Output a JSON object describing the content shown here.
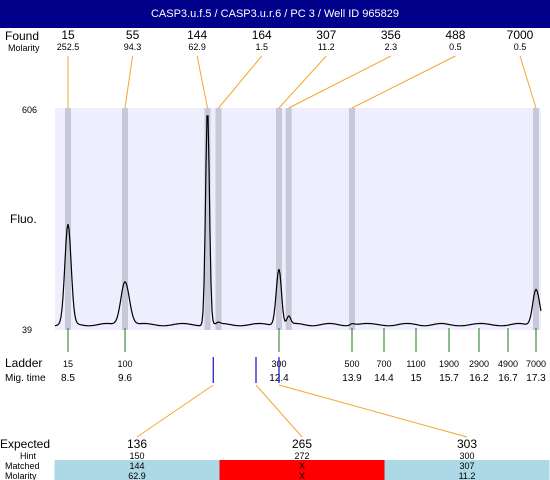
{
  "header": {
    "title": "CASP3.u.f.5 / CASP3.u.r.6 / PC 3 / Well ID 965829"
  },
  "chart_data": {
    "type": "line",
    "row_labels": {
      "found": "Found",
      "molarity": "Molarity",
      "fluo": "Fluo.",
      "ladder": "Ladder",
      "mig_time": "Mig. time",
      "expected": "Expected",
      "hint": "Hint",
      "matched": "Matched",
      "molarity2": "Molarity"
    },
    "y_range": [
      39,
      606
    ],
    "found": [
      {
        "size": "15",
        "molarity": "252.5",
        "time": 8.5
      },
      {
        "size": "55",
        "molarity": "94.3",
        "time": 9.6
      },
      {
        "size": "144",
        "molarity": "62.9",
        "time": 11.1
      },
      {
        "size": "164",
        "molarity": "1.5",
        "time": 11.3
      },
      {
        "size": "307",
        "molarity": "11.2",
        "time": 12.4
      },
      {
        "size": "356",
        "molarity": "2.3",
        "time": 12.6
      },
      {
        "size": "488",
        "molarity": "0.5",
        "time": 13.9
      },
      {
        "size": "7000",
        "molarity": "0.5",
        "time": 17.3
      }
    ],
    "ladder": [
      {
        "size": "15",
        "time": "8.5"
      },
      {
        "size": "100",
        "time": "9.6"
      },
      {
        "size": "300",
        "time": "12.4"
      },
      {
        "size": "500",
        "time": "13.9"
      },
      {
        "size": "700",
        "time": "14.4"
      },
      {
        "size": "1100",
        "time": "15"
      },
      {
        "size": "1900",
        "time": "15.7"
      },
      {
        "size": "2900",
        "time": "16.2"
      },
      {
        "size": "4900",
        "time": "16.7"
      },
      {
        "size": "7000",
        "time": "17.3"
      }
    ],
    "trace": {
      "baseline": 40,
      "peaks": [
        {
          "time": 8.5,
          "height": 300,
          "width": 0.06
        },
        {
          "time": 9.6,
          "height": 155,
          "width": 0.08
        },
        {
          "time": 11.1,
          "height": 606,
          "width": 0.035
        },
        {
          "time": 11.3,
          "height": 44,
          "width": 0.03
        },
        {
          "time": 12.4,
          "height": 188,
          "width": 0.05
        },
        {
          "time": 12.6,
          "height": 62,
          "width": 0.04
        },
        {
          "time": 13.9,
          "height": 44,
          "width": 0.04
        },
        {
          "time": 17.3,
          "height": 135,
          "width": 0.07
        }
      ]
    },
    "expected": [
      {
        "size": "136",
        "hint": "150",
        "matched": "144",
        "molarity": "62.9",
        "time": 11.15,
        "match_time": 11.1,
        "status": "matched"
      },
      {
        "size": "265",
        "hint": "272",
        "matched": "X",
        "molarity": "X",
        "time": 12.05,
        "match_time": null,
        "status": "missing"
      },
      {
        "size": "303",
        "hint": "300",
        "matched": "307",
        "molarity": "11.2",
        "time": 12.4,
        "match_time": 12.4,
        "status": "matched"
      }
    ],
    "colors": {
      "header": "#00008b",
      "plot_bg": "#eeeeff",
      "band": "#c8c8d8",
      "connector": "#f0a830",
      "ladder_tick": "#1a7a1a",
      "expected_tick": "#1010c0",
      "matched_bg": "#add8e6",
      "missing_bg": "#ff0000"
    }
  }
}
